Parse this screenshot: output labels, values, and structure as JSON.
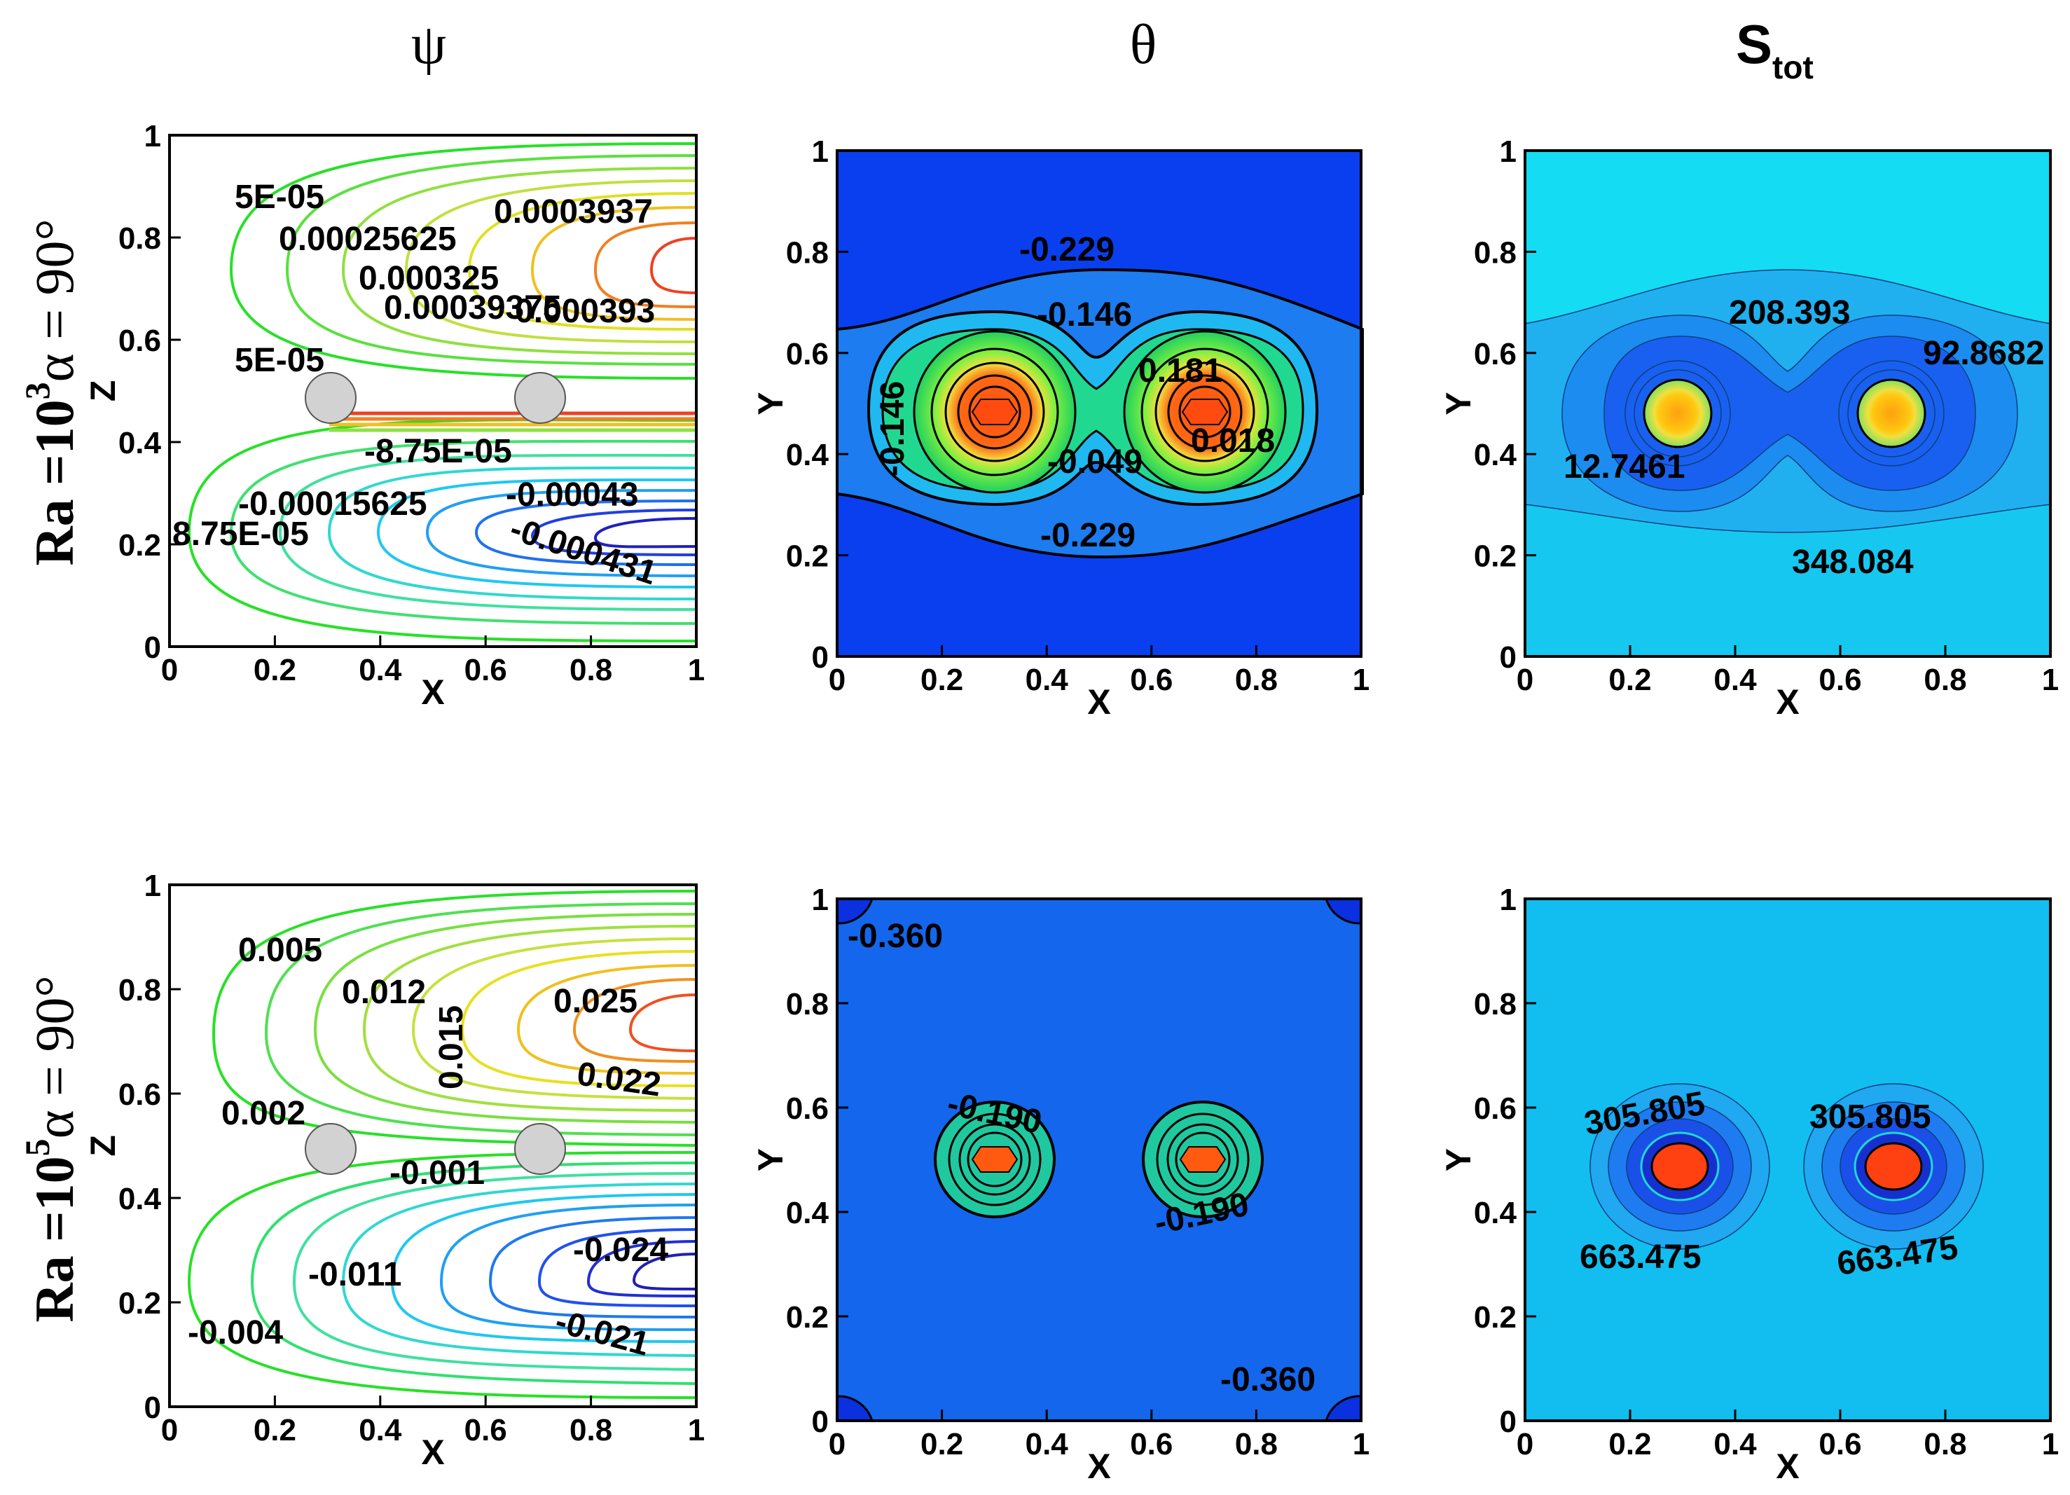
{
  "columns": {
    "psi": "ψ",
    "theta": "θ",
    "s_main": "S",
    "s_sub": "tot"
  },
  "rows": [
    {
      "ra_label": "Ra =10",
      "ra_exp": "3",
      "alpha": "α = 90°"
    },
    {
      "ra_label": "Ra =10",
      "ra_exp": "5",
      "alpha": "α = 90°"
    }
  ],
  "colors": {
    "theta_bg": "#0a3ff0",
    "theta_mid": "#1c7cf0",
    "theta_bg_r2": "#1466ec",
    "s_bg": "#14dcf2",
    "s_bg_r2": "#12bef0",
    "cylinder": "#d2d2d2"
  },
  "chart_data": [
    {
      "type": "contour",
      "panel": "psi-row1",
      "xlabel": "X",
      "ylabel": "Z",
      "xlim": [
        0,
        1
      ],
      "ylim": [
        0,
        1
      ],
      "xticks": [
        "0",
        "0.2",
        "0.4",
        "0.6",
        "0.8",
        "1"
      ],
      "yticks": [
        "0",
        "0.2",
        "0.4",
        "0.6",
        "0.8",
        "1"
      ],
      "contour_labels": [
        "5E-05",
        "0.00025625",
        "0.000325",
        "0.00039375",
        "0.0003937",
        "0.000393",
        "5E-05",
        "-8.75E-05",
        "-0.00015625",
        "-0.00043",
        "-0.000431",
        "8.75E-05"
      ]
    },
    {
      "type": "contour",
      "panel": "theta-row1",
      "xlabel": "X",
      "ylabel": "Y",
      "xlim": [
        0,
        1
      ],
      "ylim": [
        0,
        1
      ],
      "xticks": [
        "0",
        "0.2",
        "0.4",
        "0.6",
        "0.8",
        "1"
      ],
      "yticks": [
        "0",
        "0.2",
        "0.4",
        "0.6",
        "0.8",
        "1"
      ],
      "contour_labels": [
        "-0.229",
        "-0.146",
        "-0.146",
        "0.181",
        "0.018",
        "-0.049",
        "-0.229"
      ]
    },
    {
      "type": "contour",
      "panel": "s-row1",
      "xlabel": "X",
      "ylabel": "Y",
      "xlim": [
        0,
        1
      ],
      "ylim": [
        0,
        1
      ],
      "xticks": [
        "0",
        "0.2",
        "0.4",
        "0.6",
        "0.8",
        "1"
      ],
      "yticks": [
        "0",
        "0.2",
        "0.4",
        "0.6",
        "0.8",
        "1"
      ],
      "contour_labels": [
        "208.393",
        "92.8682",
        "12.7461",
        "348.084"
      ]
    },
    {
      "type": "contour",
      "panel": "psi-row2",
      "xlabel": "X",
      "ylabel": "Z",
      "xlim": [
        0,
        1
      ],
      "ylim": [
        0,
        1
      ],
      "xticks": [
        "0",
        "0.2",
        "0.4",
        "0.6",
        "0.8",
        "1"
      ],
      "yticks": [
        "0",
        "0.2",
        "0.4",
        "0.6",
        "0.8",
        "1"
      ],
      "contour_labels": [
        "0.005",
        "0.012",
        "0.015",
        "0.025",
        "0.022",
        "0.002",
        "-0.001",
        "-0.024",
        "-0.011",
        "-0.021",
        "-0.004"
      ]
    },
    {
      "type": "contour",
      "panel": "theta-row2",
      "xlabel": "X",
      "ylabel": "Y",
      "xlim": [
        0,
        1
      ],
      "ylim": [
        0,
        1
      ],
      "xticks": [
        "0",
        "0.2",
        "0.4",
        "0.6",
        "0.8",
        "1"
      ],
      "yticks": [
        "0",
        "0.2",
        "0.4",
        "0.6",
        "0.8",
        "1"
      ],
      "contour_labels": [
        "-0.360",
        "-0.190",
        "-0.190",
        "-0.360"
      ]
    },
    {
      "type": "contour",
      "panel": "s-row2",
      "xlabel": "X",
      "ylabel": "Y",
      "xlim": [
        0,
        1
      ],
      "ylim": [
        0,
        1
      ],
      "xticks": [
        "0",
        "0.2",
        "0.4",
        "0.6",
        "0.8",
        "1"
      ],
      "yticks": [
        "0",
        "0.2",
        "0.4",
        "0.6",
        "0.8",
        "1"
      ],
      "contour_labels": [
        "305.805",
        "305.805",
        "663.475",
        "663.475"
      ]
    }
  ]
}
